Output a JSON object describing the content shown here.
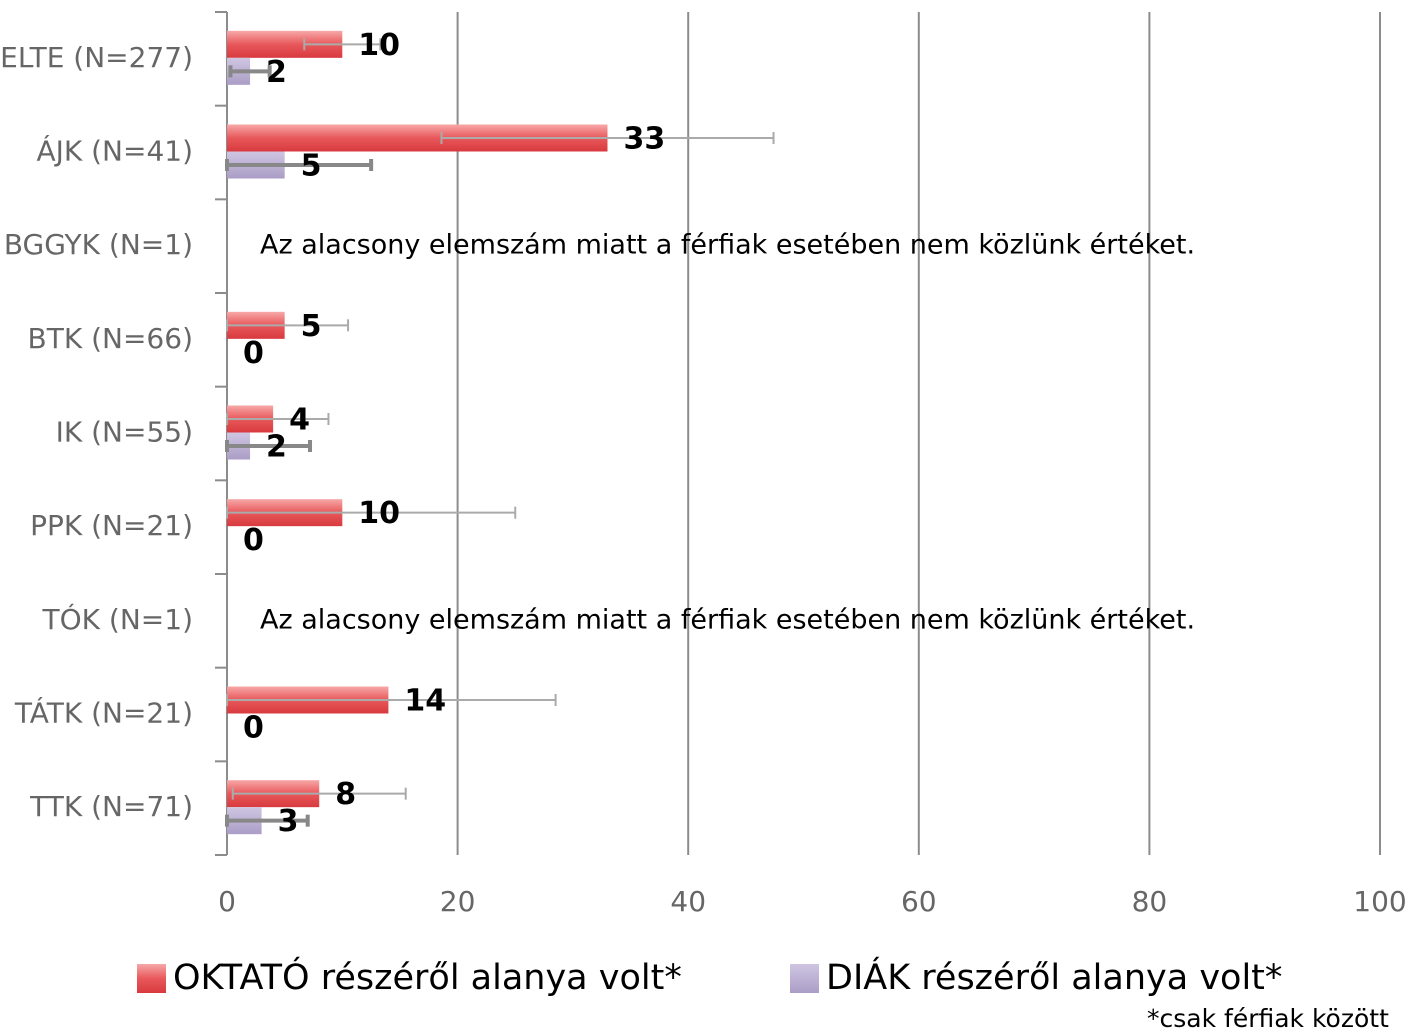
{
  "chart_data": {
    "type": "hbar",
    "categories": [
      "ELTE (N=277)",
      "ÁJK (N=41)",
      "BGGYK (N=1)",
      "BTK (N=66)",
      "IK (N=55)",
      "PPK (N=21)",
      "TÓK (N=1)",
      "TÁTK (N=21)",
      "TTK (N=71)"
    ],
    "series": [
      {
        "name": "OKTATÓ részéről alanya volt*",
        "color": "#e2474b",
        "values": [
          10,
          33,
          null,
          5,
          4,
          10,
          null,
          14,
          8
        ],
        "errors": [
          3.3,
          14.4,
          null,
          5.5,
          4.8,
          15,
          null,
          14.5,
          7.5
        ]
      },
      {
        "name": "DIÁK részéről alanya volt*",
        "color": "#b3a6cc",
        "values": [
          2,
          5,
          null,
          0,
          2,
          0,
          null,
          0,
          3
        ],
        "errors": [
          1.7,
          7.5,
          null,
          null,
          5.2,
          null,
          null,
          null,
          4
        ]
      }
    ],
    "xlim": [
      0,
      100
    ],
    "xticks": [
      0,
      20,
      40,
      60,
      80,
      100
    ],
    "grid": true,
    "legend": "bottom",
    "annotations": [
      {
        "category": "BGGYK (N=1)",
        "text": "Az alacsony elemszám miatt a férfiak esetében nem közlünk értéket."
      },
      {
        "category": "TÓK (N=1)",
        "text": "Az alacsony elemszám miatt a férfiak esetében nem közlünk értéket."
      }
    ],
    "footnote": "*csak férfiak között"
  }
}
